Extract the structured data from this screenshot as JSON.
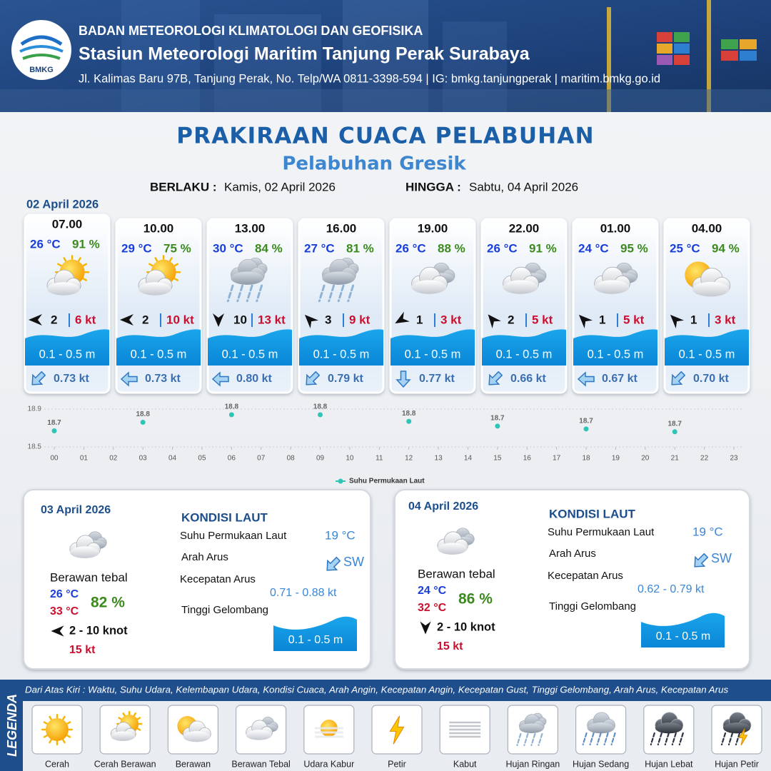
{
  "header": {
    "logo": "BMKG",
    "agency": "BADAN METEOROLOGI KLIMATOLOGI DAN GEOFISIKA",
    "station": "Stasiun Meteorologi Maritim Tanjung Perak Surabaya",
    "address": "Jl. Kalimas Baru 97B, Tanjung Perak, No. Telp/WA 0811-3398-594 | IG: bmkg.tanjungperak | maritim.bmkg.go.id"
  },
  "title": "PRAKIRAAN CUACA PELABUHAN",
  "subtitle": "Pelabuhan Gresik",
  "validity": {
    "from_label": "BERLAKU :",
    "from": "Kamis, 02 April 2026",
    "to_label": "HINGGA :",
    "to": "Sabtu, 04 April 2026"
  },
  "forecast_date": "02 April 2026",
  "forecasts": [
    {
      "time": "07.00",
      "temp": "26 °C",
      "humidity": "91 %",
      "weather": "Cerah Berawan",
      "wind_arrow": 270,
      "wind_speed": 2,
      "wind_gust": "6 kt",
      "wave": "0.1 - 0.5 m",
      "current_arrow": 225,
      "current": "0.73 kt"
    },
    {
      "time": "10.00",
      "temp": "29 °C",
      "humidity": "75 %",
      "weather": "Cerah Berawan",
      "wind_arrow": 270,
      "wind_speed": 2,
      "wind_gust": "10 kt",
      "wave": "0.1 - 0.5 m",
      "current_arrow": 270,
      "current": "0.73 kt"
    },
    {
      "time": "13.00",
      "temp": "30 °C",
      "humidity": "84 %",
      "weather": "Hujan Ringan",
      "wind_arrow": 180,
      "wind_speed": 10,
      "wind_gust": "13 kt",
      "wave": "0.1 - 0.5 m",
      "current_arrow": 270,
      "current": "0.80 kt"
    },
    {
      "time": "16.00",
      "temp": "27 °C",
      "humidity": "81 %",
      "weather": "Hujan Ringan",
      "wind_arrow": 315,
      "wind_speed": 3,
      "wind_gust": "9 kt",
      "wave": "0.1 - 0.5 m",
      "current_arrow": 225,
      "current": "0.79 kt"
    },
    {
      "time": "19.00",
      "temp": "26 °C",
      "humidity": "88 %",
      "weather": "Berawan Tebal",
      "wind_arrow": 240,
      "wind_speed": 1,
      "wind_gust": "3 kt",
      "wave": "0.1 - 0.5 m",
      "current_arrow": 180,
      "current": "0.77 kt"
    },
    {
      "time": "22.00",
      "temp": "26 °C",
      "humidity": "91 %",
      "weather": "Berawan Tebal",
      "wind_arrow": 320,
      "wind_speed": 2,
      "wind_gust": "5 kt",
      "wave": "0.1 - 0.5 m",
      "current_arrow": 225,
      "current": "0.66 kt"
    },
    {
      "time": "01.00",
      "temp": "24 °C",
      "humidity": "95 %",
      "weather": "Berawan Tebal",
      "wind_arrow": 315,
      "wind_speed": 1,
      "wind_gust": "5 kt",
      "wave": "0.1 - 0.5 m",
      "current_arrow": 270,
      "current": "0.67 kt"
    },
    {
      "time": "04.00",
      "temp": "25 °C",
      "humidity": "94 %",
      "weather": "Berawan",
      "wind_arrow": 315,
      "wind_speed": 1,
      "wind_gust": "3 kt",
      "wave": "0.1 - 0.5 m",
      "current_arrow": 225,
      "current": "0.70 kt"
    }
  ],
  "chart_data": {
    "type": "scatter",
    "x": [
      0,
      3,
      6,
      9,
      12,
      15,
      18,
      21
    ],
    "series": [
      {
        "name": "Suhu Permukaan Laut",
        "color": "#2ec4b6",
        "values": [
          18.67,
          18.76,
          18.84,
          18.84,
          18.77,
          18.72,
          18.69,
          18.66
        ],
        "value_labels": [
          "18.7",
          "18.8",
          "18.8",
          "18.8",
          "18.8",
          "18.7",
          "18.7",
          "18.7"
        ]
      }
    ],
    "xlim": [
      0,
      23
    ],
    "xticks": [
      {
        "value": 0,
        "label": "00"
      },
      {
        "value": 1,
        "label": "01"
      },
      {
        "value": 2,
        "label": "02"
      },
      {
        "value": 3,
        "label": "03"
      },
      {
        "value": 4,
        "label": "04"
      },
      {
        "value": 5,
        "label": "05"
      },
      {
        "value": 6,
        "label": "06"
      },
      {
        "value": 7,
        "label": "07"
      },
      {
        "value": 8,
        "label": "08"
      },
      {
        "value": 9,
        "label": "09"
      },
      10,
      11,
      12,
      13,
      14,
      15,
      16,
      17,
      18,
      19,
      20,
      21,
      22,
      23
    ],
    "ylim": [
      18.5,
      18.9
    ],
    "yticks": [
      18.5,
      18.9
    ],
    "grid": true,
    "legend": "bottom"
  },
  "day_panels": [
    {
      "date": "03 April 2026",
      "condition": "Berawan tebal",
      "temp_min": "26 °C",
      "temp_max": "33 °C",
      "humidity": "82 %",
      "wind_arrow": 270,
      "wind": "2 - 10 knot",
      "gust": "15 kt",
      "sea_heading": "KONDISI LAUT",
      "sst_label": "Suhu Permukaan Laut",
      "sst": "19 °C",
      "current_dir_label": "Arah Arus",
      "current_arrow": 225,
      "current_dir": "SW",
      "current_speed_label": "Kecepatan Arus",
      "current_speed": "0.71 - 0.88 kt",
      "wave_label": "Tinggi Gelombang",
      "wave": "0.1 - 0.5 m"
    },
    {
      "date": "04 April 2026",
      "condition": "Berawan tebal",
      "temp_min": "24 °C",
      "temp_max": "32 °C",
      "humidity": "86 %",
      "wind_arrow": 180,
      "wind": "2 - 10 knot",
      "gust": "15 kt",
      "sea_heading": "KONDISI LAUT",
      "sst_label": "Suhu Permukaan Laut",
      "sst": "19 °C",
      "current_dir_label": "Arah Arus",
      "current_arrow": 225,
      "current_dir": "SW",
      "current_speed_label": "Kecepatan Arus",
      "current_speed": "0.62 - 0.79 kt",
      "wave_label": "Tinggi Gelombang",
      "wave": "0.1 - 0.5 m"
    }
  ],
  "legend": {
    "title": "LEGENDA",
    "description": "Dari Atas Kiri : Waktu, Suhu Udara, Kelembapan Udara, Kondisi Cuaca, Arah Angin, Kecepatan Angin, Kecepatan Gust, Tinggi Gelombang, Arah Arus, Kecepatan Arus",
    "items": [
      "Cerah",
      "Cerah Berawan",
      "Berawan",
      "Berawan Tebal",
      "Udara Kabur",
      "Petir",
      "Kabut",
      "Hujan Ringan",
      "Hujan Sedang",
      "Hujan Lebat",
      "Hujan Petir"
    ]
  }
}
